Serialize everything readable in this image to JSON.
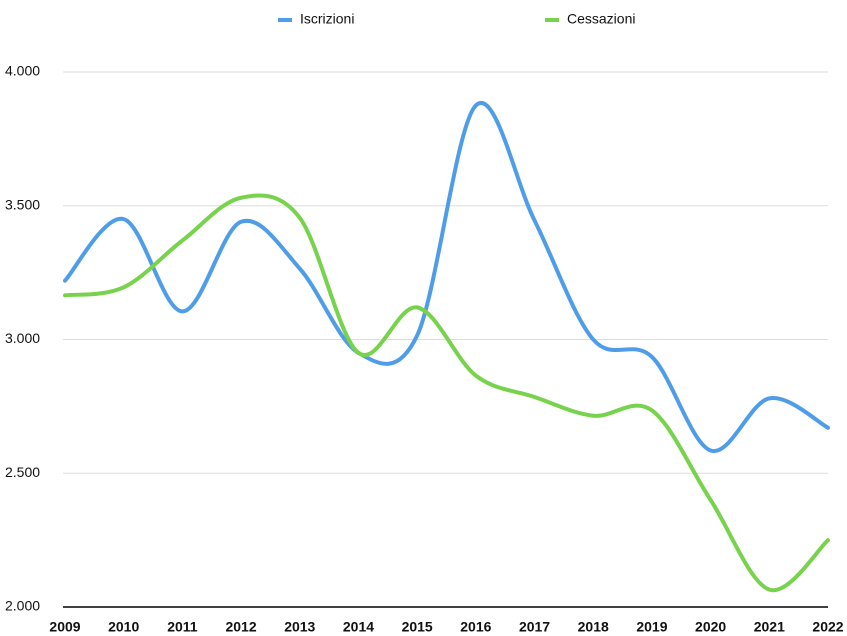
{
  "chart_data": {
    "type": "line",
    "categories": [
      "2009",
      "2010",
      "2011",
      "2012",
      "2013",
      "2014",
      "2015",
      "2016",
      "2017",
      "2018",
      "2019",
      "2020",
      "2021",
      "2022"
    ],
    "series": [
      {
        "name": "Iscrizioni",
        "color": "#4f9de8",
        "values": [
          3220,
          3450,
          3105,
          3440,
          3265,
          2950,
          3015,
          3875,
          3445,
          3000,
          2935,
          2585,
          2780,
          2670
        ]
      },
      {
        "name": "Cessazioni",
        "color": "#77d34c",
        "values": [
          3165,
          3195,
          3370,
          3530,
          3455,
          2950,
          3120,
          2865,
          2785,
          2715,
          2735,
          2400,
          2065,
          2250
        ]
      }
    ],
    "ylim": [
      2000,
      4000
    ],
    "yticks": [
      {
        "value": 2000,
        "label": "2.000"
      },
      {
        "value": 2500,
        "label": "2.500"
      },
      {
        "value": 3000,
        "label": "3.000"
      },
      {
        "value": 3500,
        "label": "3.500"
      },
      {
        "value": 4000,
        "label": "4.000"
      }
    ],
    "grid": true,
    "legend": "top",
    "smooth": true
  }
}
